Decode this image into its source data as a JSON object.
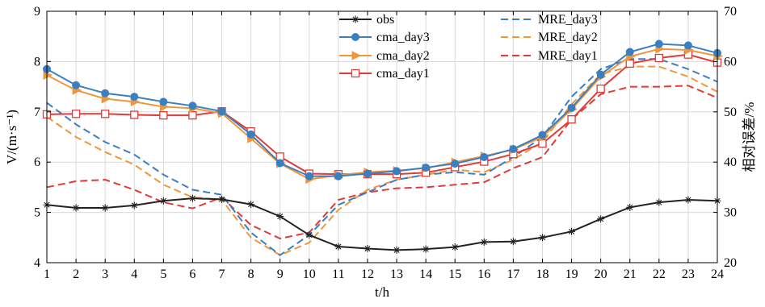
{
  "chart_data": {
    "type": "line",
    "xlabel": "t/h",
    "ylabel": "V/(m·s⁻¹)",
    "y2label": "相对误差/%",
    "x": [
      1,
      2,
      3,
      4,
      5,
      6,
      7,
      8,
      9,
      10,
      11,
      12,
      13,
      14,
      15,
      16,
      17,
      18,
      19,
      20,
      21,
      22,
      23,
      24
    ],
    "xlim": [
      1,
      24
    ],
    "ylim": [
      4,
      9
    ],
    "y2lim": [
      20,
      70
    ],
    "x_ticks": [
      "1",
      "2",
      "3",
      "4",
      "5",
      "6",
      "7",
      "8",
      "9",
      "10",
      "11",
      "12",
      "13",
      "14",
      "15",
      "16",
      "17",
      "18",
      "19",
      "20",
      "21",
      "22",
      "23",
      "24"
    ],
    "y_ticks": [
      "4",
      "5",
      "6",
      "7",
      "8",
      "9"
    ],
    "y2_ticks": [
      "20",
      "30",
      "40",
      "50",
      "60",
      "70"
    ],
    "legend_position": "top-center",
    "series": [
      {
        "name": "obs",
        "axis": "left",
        "color": "#222222",
        "style": "solid",
        "marker": "star",
        "values": [
          5.15,
          5.09,
          5.09,
          5.14,
          5.23,
          5.28,
          5.26,
          5.16,
          4.92,
          4.55,
          4.32,
          4.28,
          4.25,
          4.27,
          4.31,
          4.41,
          4.42,
          4.5,
          4.62,
          4.87,
          5.1,
          5.2,
          5.25,
          5.23
        ]
      },
      {
        "name": "cma_day3",
        "axis": "left",
        "color": "#3a7fc1",
        "style": "solid",
        "marker": "filled-circle",
        "values": [
          7.85,
          7.53,
          7.37,
          7.3,
          7.2,
          7.12,
          7.01,
          6.55,
          5.98,
          5.72,
          5.72,
          5.77,
          5.82,
          5.89,
          5.97,
          6.1,
          6.26,
          6.54,
          7.08,
          7.74,
          8.19,
          8.35,
          8.32,
          8.17
        ]
      },
      {
        "name": "cma_day2",
        "axis": "left",
        "color": "#f0963c",
        "style": "solid",
        "marker": "triangle-right",
        "values": [
          7.73,
          7.43,
          7.26,
          7.2,
          7.1,
          7.07,
          6.97,
          6.47,
          5.97,
          5.66,
          5.74,
          5.8,
          5.83,
          5.88,
          6.0,
          6.12,
          6.25,
          6.5,
          7.05,
          7.7,
          8.1,
          8.25,
          8.23,
          8.11
        ]
      },
      {
        "name": "cma_day1",
        "axis": "left",
        "color": "#e23a36",
        "style": "solid",
        "marker": "open-square",
        "values": [
          6.95,
          6.96,
          6.96,
          6.94,
          6.93,
          6.93,
          7.01,
          6.61,
          6.11,
          5.77,
          5.76,
          5.76,
          5.76,
          5.79,
          5.9,
          6.01,
          6.16,
          6.37,
          6.85,
          7.46,
          7.96,
          8.07,
          8.14,
          7.98
        ]
      },
      {
        "name": "MRE_day3",
        "axis": "right",
        "color": "#3a7fc1",
        "style": "dashed",
        "marker": "none",
        "values": [
          51.8,
          47.5,
          44.0,
          41.5,
          37.5,
          34.5,
          33.5,
          26.0,
          21.5,
          25.5,
          31.5,
          34.0,
          36.5,
          37.5,
          38.0,
          37.5,
          41.0,
          45.0,
          53.0,
          58.5,
          60.5,
          60.5,
          58.5,
          56.0
        ]
      },
      {
        "name": "MRE_day2",
        "axis": "right",
        "color": "#f0963c",
        "style": "dashed",
        "marker": "none",
        "values": [
          49.0,
          45.0,
          42.0,
          39.5,
          35.5,
          33.0,
          32.5,
          25.0,
          21.5,
          24.0,
          30.5,
          34.5,
          36.5,
          37.5,
          38.5,
          38.0,
          40.5,
          44.0,
          51.5,
          57.5,
          59.0,
          59.0,
          57.0,
          54.0
        ]
      },
      {
        "name": "MRE_day1",
        "axis": "right",
        "color": "#e23a36",
        "style": "dashed",
        "marker": "none",
        "values": [
          35.0,
          36.2,
          36.5,
          34.5,
          32.0,
          30.8,
          33.0,
          27.5,
          24.8,
          26.0,
          32.5,
          34.0,
          34.8,
          35.0,
          35.5,
          36.0,
          38.8,
          41.0,
          48.5,
          53.5,
          55.0,
          55.0,
          55.2,
          52.8
        ]
      }
    ]
  }
}
